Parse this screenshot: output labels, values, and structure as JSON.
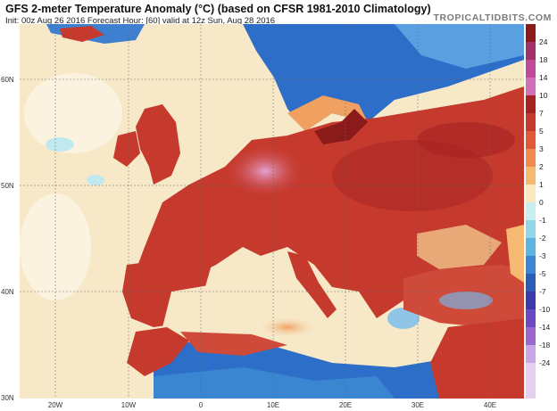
{
  "header": {
    "title": "GFS 2-meter Temperature Anomaly (°C) (based on CFSR 1981-2010 Climatology)",
    "subtitle": "Init: 00z Aug 26 2016   Forecast Hour: [60]   valid at 12z Sun, Aug 28 2016",
    "brand": "TROPICALTIDBITS.COM"
  },
  "map": {
    "lat_labels": [
      "60N",
      "50N",
      "40N",
      "30N"
    ],
    "lon_labels": [
      "20W",
      "10W",
      "0",
      "10E",
      "20E",
      "30E",
      "40E"
    ],
    "colors": {
      "sea": "#f7e8c8",
      "land": "#c63a2e",
      "cold": "#2d6fc8",
      "hot": "#e6a3d3"
    }
  },
  "colorbar": {
    "labels": [
      "24",
      "18",
      "14",
      "10",
      "7",
      "5",
      "3",
      "2",
      "1",
      "0",
      "-1",
      "-2",
      "-3",
      "-5",
      "-7",
      "-10",
      "-14",
      "-18",
      "-24"
    ],
    "colors": [
      "#8b1a1a",
      "#a0306a",
      "#c04a9a",
      "#d36fb8",
      "#a52222",
      "#c63a2e",
      "#e05a3a",
      "#ee8a4c",
      "#f5b971",
      "#fbe9bd",
      "#c9eef0",
      "#8fd6e8",
      "#5cb4e0",
      "#3a86d0",
      "#2c5cb6",
      "#3a3aa8",
      "#6a4ac0",
      "#9a66d0",
      "#c9a6e8"
    ]
  }
}
